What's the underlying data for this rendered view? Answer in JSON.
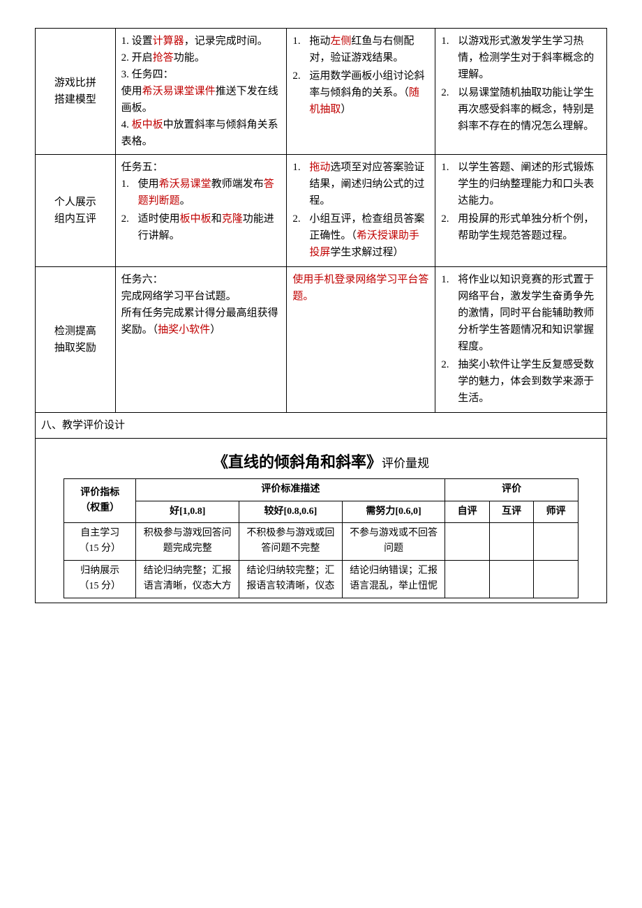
{
  "main_table": {
    "col_widths": [
      "14%",
      "30%",
      "26%",
      "30%"
    ],
    "rows": [
      {
        "label": "游戏比拼\n搭建模型",
        "teacher": {
          "items": [
            {
              "text_parts": [
                {
                  "t": "1. 设置"
                },
                {
                  "t": "计算器",
                  "red": true
                },
                {
                  "t": "，记录完成时间。"
                }
              ]
            },
            {
              "text_parts": [
                {
                  "t": "2. 开启"
                },
                {
                  "t": "抢答",
                  "red": true
                },
                {
                  "t": "功能。"
                }
              ]
            },
            {
              "text_parts": [
                {
                  "t": "3. 任务四："
                }
              ]
            },
            {
              "text_parts": [
                {
                  "t": "使用"
                },
                {
                  "t": "希沃易课堂课件",
                  "red": true
                },
                {
                  "t": "推送下发在线画板。"
                }
              ]
            },
            {
              "text_parts": [
                {
                  "t": "4. "
                },
                {
                  "t": "板中板",
                  "red": true
                },
                {
                  "t": "中放置斜率与倾斜角关系表格。"
                }
              ]
            }
          ]
        },
        "student": {
          "ol": [
            {
              "parts": [
                {
                  "t": "拖动"
                },
                {
                  "t": "左侧",
                  "red": true
                },
                {
                  "t": "红鱼与右侧配对，验证游戏结果。"
                }
              ]
            },
            {
              "parts": [
                {
                  "t": "运用数学画板小组讨论斜率与倾斜角的关系。（"
                },
                {
                  "t": "随机抽取",
                  "red": true
                },
                {
                  "t": "）"
                }
              ]
            }
          ]
        },
        "intent": {
          "ol": [
            {
              "parts": [
                {
                  "t": "以游戏形式激发学生学习热情，检测学生对于斜率概念的理解。"
                }
              ]
            },
            {
              "parts": [
                {
                  "t": "以易课堂随机抽取功能让学生再次感受斜率的概念，特别是斜率不存在的情况怎么理解。"
                }
              ]
            }
          ]
        }
      },
      {
        "label": "个人展示\n组内互评",
        "teacher": {
          "lead": "任务五：",
          "ol": [
            {
              "parts": [
                {
                  "t": "使用"
                },
                {
                  "t": "希沃易课堂",
                  "red": true
                },
                {
                  "t": "教师端发布"
                },
                {
                  "t": "答题判断题",
                  "red": true
                },
                {
                  "t": "。"
                }
              ]
            },
            {
              "parts": [
                {
                  "t": "适时使用"
                },
                {
                  "t": "板中板",
                  "red": true
                },
                {
                  "t": "和"
                },
                {
                  "t": "克隆",
                  "red": true
                },
                {
                  "t": "功能进行讲解。"
                }
              ]
            }
          ]
        },
        "student": {
          "ol": [
            {
              "parts": [
                {
                  "t": "拖动",
                  "red": true
                },
                {
                  "t": "选项至对应答案验证结果，阐述归纳公式的过程。"
                }
              ]
            },
            {
              "parts": [
                {
                  "t": "小组互评，检查组员答案正确性。（"
                },
                {
                  "t": "希沃授课助手投屏",
                  "red": true
                },
                {
                  "t": "学生求解过程）"
                }
              ]
            }
          ]
        },
        "intent": {
          "ol": [
            {
              "parts": [
                {
                  "t": "以学生答题、阐述的形式锻炼学生的归纳整理能力和口头表达能力。"
                }
              ]
            },
            {
              "parts": [
                {
                  "t": "用投屏的形式单独分析个例，帮助学生规范答题过程。"
                }
              ]
            }
          ]
        }
      },
      {
        "label": "检测提高\n抽取奖励",
        "teacher": {
          "lead": "任务六：",
          "plain": [
            {
              "parts": [
                {
                  "t": "完成网络学习平台试题。"
                }
              ]
            },
            {
              "parts": [
                {
                  "t": "所有任务完成累计得分最高组获得奖励。（"
                },
                {
                  "t": "抽奖小软件",
                  "red": true
                },
                {
                  "t": "）"
                }
              ]
            }
          ]
        },
        "student": {
          "plain": [
            {
              "parts": [
                {
                  "t": "使用手机登录网络学习平台答题。",
                  "red": true
                }
              ]
            }
          ]
        },
        "intent": {
          "ol": [
            {
              "parts": [
                {
                  "t": "将作业以知识竞赛的形式置于网络平台，激发学生奋勇争先的激情，同时平台能辅助教师分析学生答题情况和知识掌握程度。"
                }
              ]
            },
            {
              "parts": [
                {
                  "t": "抽奖小软件让学生反复感受数学的魅力，体会到数学来源于生活。"
                }
              ]
            }
          ]
        }
      }
    ]
  },
  "section8_label": "八、教学评价设计",
  "rubric": {
    "title_main": "《直线的倾斜角和斜率》",
    "title_sub": "评价量规",
    "head": {
      "metric": "评价指标",
      "weight": "（权重）",
      "desc": "评价标准描述",
      "eval": "评价",
      "good": "好[1,0.8]",
      "ok": "较好[0.8,0.6]",
      "effort": "需努力[0.6,0]",
      "self": "自评",
      "peer": "互评",
      "teach": "师评"
    },
    "rows": [
      {
        "metric": "自主学习",
        "weight": "（15 分）",
        "good": "积极参与游戏回答问题完成完整",
        "ok": "不积极参与游戏或回答问题不完整",
        "effort": "不参与游戏或不回答问题"
      },
      {
        "metric": "归纳展示",
        "weight": "（15 分）",
        "good": "结论归纳完整；汇报语言清晰，仪态大方",
        "ok": "结论归纳较完整；汇报语言较清晰，仪态",
        "effort": "结论归纳错误；汇报语言混乱，举止忸怩"
      }
    ]
  }
}
